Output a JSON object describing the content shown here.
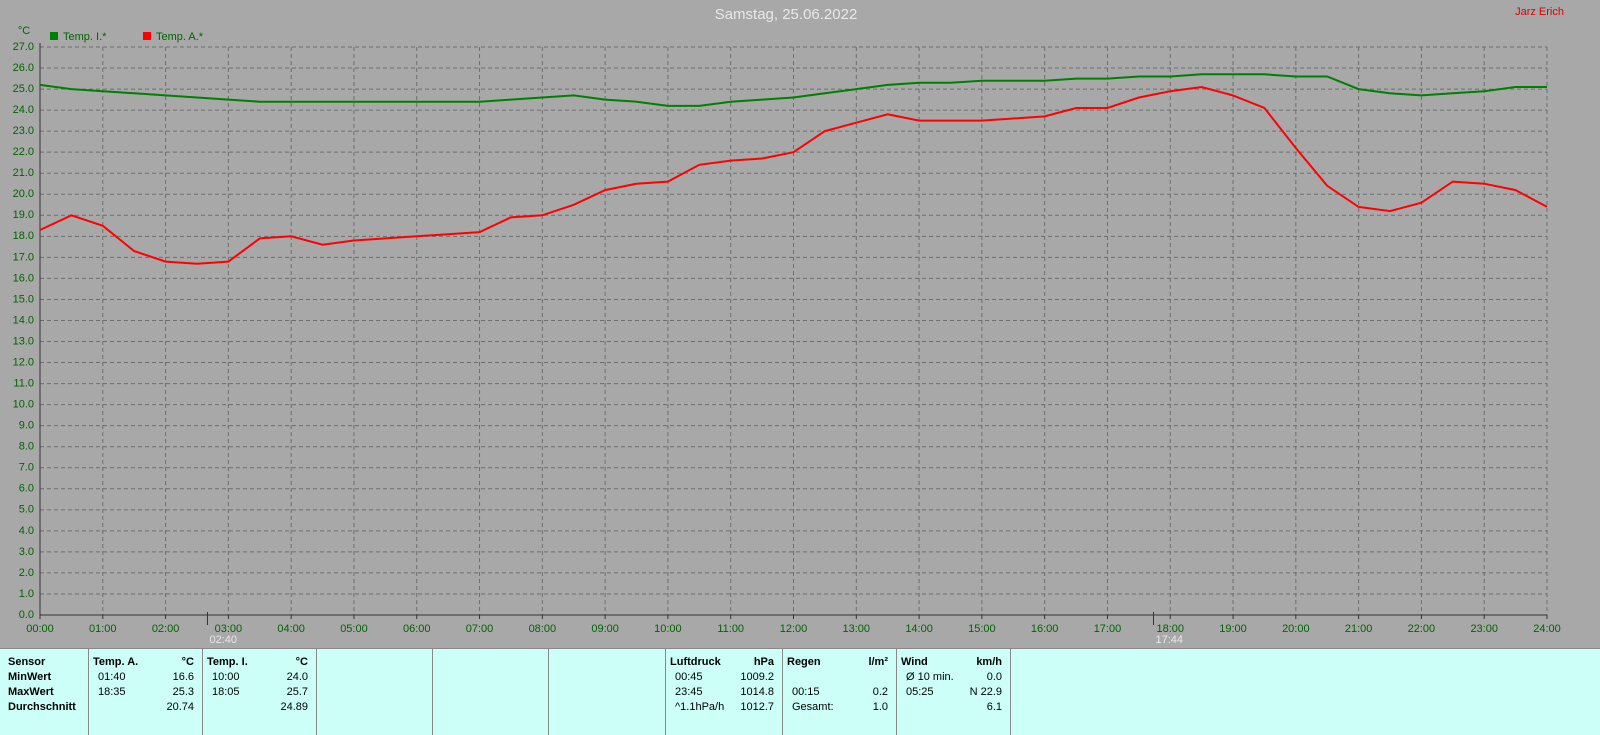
{
  "chart_data": {
    "type": "line",
    "title": "Samstag, 25.06.2022",
    "owner": "Jarz Erich",
    "ylabel": "°C",
    "x": [
      0,
      0.5,
      1,
      1.5,
      2,
      2.5,
      3,
      3.5,
      4,
      4.5,
      5,
      5.5,
      6,
      6.5,
      7,
      7.5,
      8,
      8.5,
      9,
      9.5,
      10,
      10.5,
      11,
      11.5,
      12,
      12.5,
      13,
      13.5,
      14,
      14.5,
      15,
      15.5,
      16,
      16.5,
      17,
      17.5,
      18,
      18.5,
      19,
      19.5,
      20,
      20.5,
      21,
      21.5,
      22,
      22.5,
      23,
      23.5,
      24
    ],
    "series": [
      {
        "name": "Temp. I.*",
        "color": "#008000",
        "values": [
          25.2,
          25.0,
          24.9,
          24.8,
          24.7,
          24.6,
          24.5,
          24.4,
          24.4,
          24.4,
          24.4,
          24.4,
          24.4,
          24.4,
          24.4,
          24.5,
          24.6,
          24.7,
          24.5,
          24.4,
          24.2,
          24.2,
          24.4,
          24.5,
          24.6,
          24.8,
          25.0,
          25.2,
          25.3,
          25.3,
          25.4,
          25.4,
          25.4,
          25.5,
          25.5,
          25.6,
          25.6,
          25.7,
          25.7,
          25.7,
          25.6,
          25.6,
          25.0,
          24.8,
          24.7,
          24.8,
          24.9,
          25.1,
          25.1
        ]
      },
      {
        "name": "Temp. A.*",
        "color": "#ff0000",
        "values": [
          18.3,
          19.0,
          18.5,
          17.3,
          16.8,
          16.7,
          16.8,
          17.9,
          18.0,
          17.6,
          17.8,
          17.9,
          18.0,
          18.1,
          18.2,
          18.9,
          19.0,
          19.5,
          20.2,
          20.5,
          20.6,
          21.4,
          21.6,
          21.7,
          22.0,
          23.0,
          23.4,
          23.8,
          23.5,
          23.5,
          23.5,
          23.6,
          23.7,
          24.1,
          24.1,
          24.6,
          24.9,
          25.1,
          24.7,
          24.1,
          22.2,
          20.4,
          19.4,
          19.2,
          19.6,
          20.6,
          20.5,
          20.2,
          19.4
        ]
      }
    ],
    "xlim": [
      0,
      24
    ],
    "xticks": [
      {
        "value": 0,
        "label": "00:00"
      },
      {
        "value": 1,
        "label": "01:00"
      },
      {
        "value": 2,
        "label": "02:00"
      },
      {
        "value": 3,
        "label": "03:00"
      },
      {
        "value": 4,
        "label": "04:00"
      },
      {
        "value": 5,
        "label": "05:00"
      },
      {
        "value": 6,
        "label": "06:00"
      },
      {
        "value": 7,
        "label": "07:00"
      },
      {
        "value": 8,
        "label": "08:00"
      },
      {
        "value": 9,
        "label": "09:00"
      },
      {
        "value": 10,
        "label": "10:00"
      },
      {
        "value": 11,
        "label": "11:00"
      },
      {
        "value": 12,
        "label": "12:00"
      },
      {
        "value": 13,
        "label": "13:00"
      },
      {
        "value": 14,
        "label": "14:00"
      },
      {
        "value": 15,
        "label": "15:00"
      },
      {
        "value": 16,
        "label": "16:00"
      },
      {
        "value": 17,
        "label": "17:00"
      },
      {
        "value": 18,
        "label": "18:00"
      },
      {
        "value": 19,
        "label": "19:00"
      },
      {
        "value": 20,
        "label": "20:00"
      },
      {
        "value": 21,
        "label": "21:00"
      },
      {
        "value": 22,
        "label": "22:00"
      },
      {
        "value": 23,
        "label": "23:00"
      },
      {
        "value": 24,
        "label": "24:00"
      }
    ],
    "ylim": [
      0,
      27
    ],
    "yticks": [
      {
        "value": 0,
        "label": "0.0"
      },
      {
        "value": 1,
        "label": "1.0"
      },
      {
        "value": 2,
        "label": "2.0"
      },
      {
        "value": 3,
        "label": "3.0"
      },
      {
        "value": 4,
        "label": "4.0"
      },
      {
        "value": 5,
        "label": "5.0"
      },
      {
        "value": 6,
        "label": "6.0"
      },
      {
        "value": 7,
        "label": "7.0"
      },
      {
        "value": 8,
        "label": "8.0"
      },
      {
        "value": 9,
        "label": "9.0"
      },
      {
        "value": 10,
        "label": "10.0"
      },
      {
        "value": 11,
        "label": "11.0"
      },
      {
        "value": 12,
        "label": "12.0"
      },
      {
        "value": 13,
        "label": "13.0"
      },
      {
        "value": 14,
        "label": "14.0"
      },
      {
        "value": 15,
        "label": "15.0"
      },
      {
        "value": 16,
        "label": "16.0"
      },
      {
        "value": 17,
        "label": "17.0"
      },
      {
        "value": 18,
        "label": "18.0"
      },
      {
        "value": 19,
        "label": "19.0"
      },
      {
        "value": 20,
        "label": "20.0"
      },
      {
        "value": 21,
        "label": "21.0"
      },
      {
        "value": 22,
        "label": "22.0"
      },
      {
        "value": 23,
        "label": "23.0"
      },
      {
        "value": 24,
        "label": "24.0"
      },
      {
        "value": 25,
        "label": "25.0"
      },
      {
        "value": 26,
        "label": "26.0"
      },
      {
        "value": 27,
        "label": "27.0"
      }
    ],
    "grid": true,
    "markers": [
      {
        "label": "02:40",
        "x": 2.667
      },
      {
        "label": "17:44",
        "x": 17.733
      }
    ]
  },
  "stats": {
    "row_labels": [
      "Sensor",
      "MinWert",
      "MaxWert",
      "Durchschnitt"
    ],
    "blocks": [
      {
        "title": "Temp. A.",
        "unit": "°C",
        "rows": [
          [
            "01:40",
            "16.6"
          ],
          [
            "18:35",
            "25.3"
          ],
          [
            null,
            "20.74"
          ]
        ]
      },
      {
        "title": "Temp. I.",
        "unit": "°C",
        "rows": [
          [
            "10:00",
            "24.0"
          ],
          [
            "18:05",
            "25.7"
          ],
          [
            null,
            "24.89"
          ]
        ]
      },
      {
        "title": "Luftdruck",
        "unit": "hPa",
        "rows": [
          [
            "00:45",
            "1009.2"
          ],
          [
            "23:45",
            "1014.8"
          ],
          [
            "^1.1hPa/h",
            "1012.7"
          ]
        ]
      },
      {
        "title": "Regen",
        "unit": "l/m²",
        "rows": [
          [
            null,
            null
          ],
          [
            "00:15",
            "0.2"
          ],
          [
            "Gesamt:",
            "1.0"
          ]
        ]
      },
      {
        "title": "Wind",
        "unit": "km/h",
        "rows": [
          [
            "Ø 10 min.",
            "0.0"
          ],
          [
            "05:25",
            "N 22.9"
          ],
          [
            null,
            "6.1"
          ]
        ]
      }
    ]
  }
}
